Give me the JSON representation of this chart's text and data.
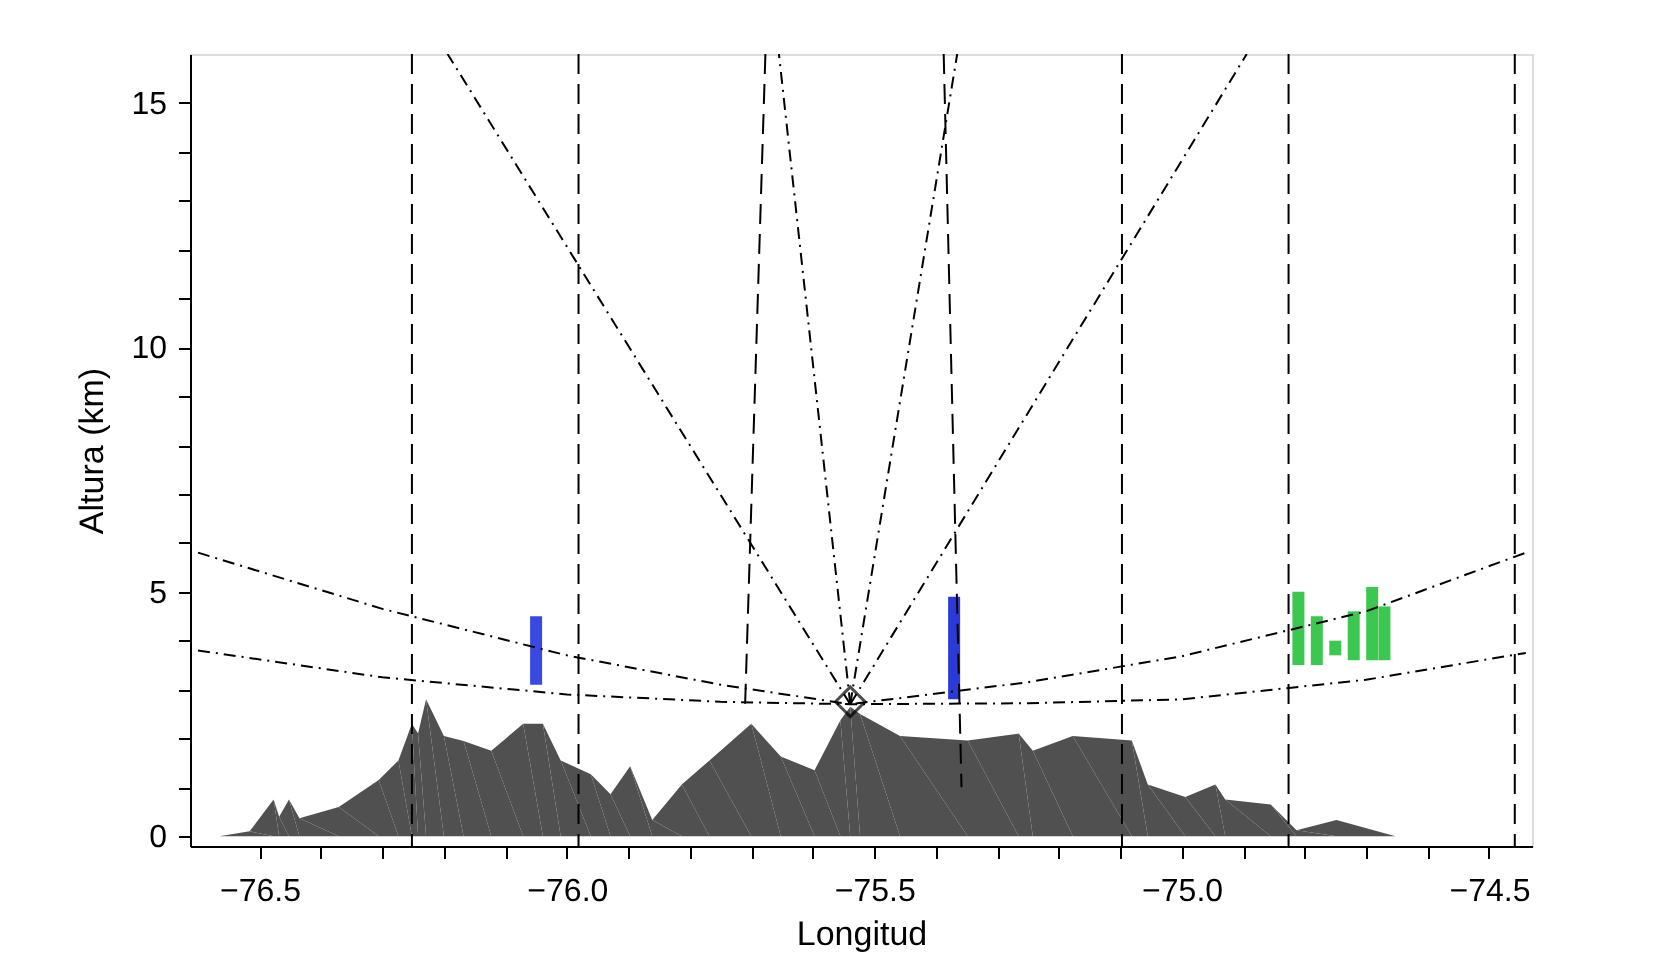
{
  "chart_data": {
    "type": "line",
    "xlabel": "Longitud",
    "ylabel": "Altura (km)",
    "xlim": [
      -76.613,
      -74.43
    ],
    "ylim": [
      -0.2,
      16
    ],
    "xticks": [
      {
        "value": -76.5,
        "label": "−76.5"
      },
      {
        "value": -76.4,
        "label": null
      },
      {
        "value": -76.3,
        "label": null
      },
      {
        "value": -76.2,
        "label": null
      },
      {
        "value": -76.1,
        "label": null
      },
      {
        "value": -76.0,
        "label": "−76.0"
      },
      {
        "value": -75.9,
        "label": null
      },
      {
        "value": -75.8,
        "label": null
      },
      {
        "value": -75.7,
        "label": null
      },
      {
        "value": -75.6,
        "label": null
      },
      {
        "value": -75.5,
        "label": "−75.5"
      },
      {
        "value": -75.4,
        "label": null
      },
      {
        "value": -75.3,
        "label": null
      },
      {
        "value": -75.2,
        "label": null
      },
      {
        "value": -75.1,
        "label": null
      },
      {
        "value": -75.0,
        "label": "−75.0"
      },
      {
        "value": -74.9,
        "label": null
      },
      {
        "value": -74.8,
        "label": null
      },
      {
        "value": -74.7,
        "label": null
      },
      {
        "value": -74.6,
        "label": null
      },
      {
        "value": -74.5,
        "label": "−74.5"
      }
    ],
    "yticks": [
      0,
      {
        "value": 1,
        "label": null
      },
      {
        "value": 2,
        "label": null
      },
      {
        "value": 3,
        "label": null
      },
      {
        "value": 4,
        "label": null
      },
      5,
      {
        "value": 6,
        "label": null
      },
      {
        "value": 7,
        "label": null
      },
      {
        "value": 8,
        "label": null
      },
      {
        "value": 9,
        "label": null
      },
      10,
      {
        "value": 11,
        "label": null
      },
      {
        "value": 12,
        "label": null
      },
      {
        "value": 13,
        "label": null
      },
      {
        "value": 14,
        "label": null
      },
      15
    ],
    "grid": false,
    "series": [
      {
        "type": "area",
        "color": "#505050",
        "x": [
          -76.613,
          -76.565,
          -76.516,
          -76.477,
          -76.468,
          -76.452,
          -76.435,
          -76.371,
          -76.306,
          -76.274,
          -76.252,
          -76.242,
          -76.229,
          -76.2,
          -76.168,
          -76.123,
          -76.071,
          -76.039,
          -76.01,
          -75.961,
          -75.929,
          -75.897,
          -75.861,
          -75.813,
          -75.768,
          -75.7,
          -75.652,
          -75.597,
          -75.555,
          -75.539,
          -75.523,
          -75.458,
          -75.348,
          -75.265,
          -75.242,
          -75.177,
          -75.081,
          -75.055,
          -74.994,
          -74.945,
          -74.929,
          -74.855,
          -74.813,
          -74.748,
          -74.652,
          -74.468,
          -74.43
        ],
        "values": [
          0,
          0,
          0.1,
          0.75,
          0.4,
          0.75,
          0.37,
          0.6,
          1.15,
          1.55,
          2.3,
          2.1,
          2.8,
          2.05,
          1.95,
          1.75,
          2.3,
          2.3,
          1.55,
          1.27,
          0.86,
          1.43,
          0.33,
          1.06,
          1.55,
          2.3,
          1.63,
          1.35,
          2.37,
          2.65,
          2.5,
          2.05,
          1.96,
          2.1,
          1.75,
          2.05,
          1.96,
          1.06,
          0.8,
          1.06,
          0.75,
          0.65,
          0.12,
          0.33,
          0,
          0,
          0
        ]
      },
      {
        "type": "line",
        "color": "#000000",
        "line_style": "dashdot",
        "x": [
          -76.6,
          -76.3,
          -76.0,
          -75.75,
          -75.539,
          -75.25,
          -75.0,
          -74.7,
          -74.44
        ],
        "values": [
          5.8,
          4.65,
          3.7,
          3.1,
          2.7,
          3.15,
          3.68,
          4.6,
          5.8
        ]
      },
      {
        "type": "line",
        "color": "#000000",
        "line_style": "dashdot",
        "x": [
          -76.6,
          -76.3,
          -76.0,
          -75.75,
          -75.539,
          -75.25,
          -75.0,
          -74.7,
          -74.44
        ],
        "values": [
          3.8,
          3.25,
          2.9,
          2.75,
          2.7,
          2.72,
          2.8,
          3.2,
          3.75
        ]
      },
      {
        "type": "line",
        "color": "#000000",
        "line_style": "dashdot",
        "x": [
          -75.539,
          -76.194
        ],
        "values": [
          2.7,
          16
        ]
      },
      {
        "type": "line",
        "color": "#000000",
        "line_style": "dashdot",
        "x": [
          -75.539,
          -75.655
        ],
        "values": [
          2.7,
          16
        ]
      },
      {
        "type": "line",
        "color": "#000000",
        "line_style": "dashdot",
        "x": [
          -75.539,
          -75.365
        ],
        "values": [
          2.7,
          16
        ]
      },
      {
        "type": "line",
        "color": "#000000",
        "line_style": "dashdot",
        "x": [
          -75.539,
          -74.894
        ],
        "values": [
          2.7,
          16
        ]
      },
      {
        "type": "line",
        "color": "#000000",
        "line_style": "dashed",
        "x": [
          -75.677,
          -75.71
        ],
        "values": [
          16,
          2.7
        ]
      },
      {
        "type": "line",
        "color": "#000000",
        "line_style": "dashed",
        "x": [
          -75.387,
          -75.358
        ],
        "values": [
          16,
          1.0
        ]
      },
      {
        "type": "bar",
        "color": "#3a4ae0",
        "x": [
          -76.05
        ],
        "base": [
          3.1
        ],
        "values": [
          1.4
        ]
      },
      {
        "type": "bar",
        "color": "#2a3ad8",
        "x": [
          -75.37
        ],
        "base": [
          2.8
        ],
        "values": [
          2.1
        ]
      },
      {
        "type": "bar",
        "color": "#3cc850",
        "x": [
          -74.81,
          -74.78,
          -74.75,
          -74.72,
          -74.69,
          -74.67
        ],
        "base": [
          3.5,
          3.5,
          3.7,
          3.6,
          3.6,
          3.6
        ],
        "values": [
          1.5,
          1.0,
          0.3,
          1.0,
          1.5,
          1.1
        ]
      },
      {
        "type": "scatter",
        "color": "#000000",
        "marker": "diamond",
        "x": [
          -75.539
        ],
        "values": [
          2.75
        ]
      }
    ],
    "ref_lines": [
      {
        "axis": "x",
        "value": -76.252,
        "line_style": "dashed",
        "color": "#000000"
      },
      {
        "axis": "x",
        "value": -75.981,
        "line_style": "dashed",
        "color": "#000000"
      },
      {
        "axis": "x",
        "value": -75.097,
        "line_style": "dashed",
        "color": "#000000"
      },
      {
        "axis": "x",
        "value": -74.826,
        "line_style": "dashed",
        "color": "#000000"
      },
      {
        "axis": "x",
        "value": -74.458,
        "line_style": "dashed",
        "color": "#000000"
      }
    ]
  }
}
